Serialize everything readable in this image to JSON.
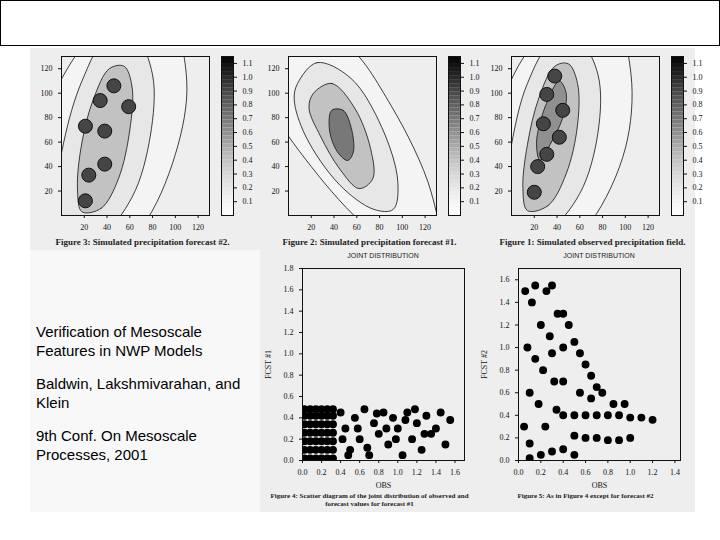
{
  "text": [
    "Verification of Mesoscale Features in NWP Models",
    "Baldwin, Lakshmivarahan, and Klein",
    "9th Conf. On Mesoscale Processes, 2001"
  ],
  "chart_data": [
    {
      "type": "contour",
      "caption": "Figure 3: Simulated precipitation forecast #2.",
      "xlim": [
        0,
        130
      ],
      "ylim": [
        0,
        130
      ],
      "xticks": [
        20,
        40,
        60,
        80,
        100,
        120
      ],
      "yticks": [
        20,
        40,
        60,
        80,
        100,
        120
      ],
      "contours": [
        {
          "level": 0.1,
          "x": [
            -10,
            30,
            70,
            100,
            110,
            95,
            60,
            20,
            -15,
            -30
          ],
          "y": [
            -40,
            -40,
            -10,
            50,
            110,
            160,
            170,
            140,
            80,
            10
          ]
        },
        {
          "level": 0.2,
          "x": [
            5,
            35,
            62,
            78,
            80,
            65,
            40,
            18,
            2,
            -5
          ],
          "y": [
            -15,
            -15,
            15,
            65,
            115,
            145,
            145,
            110,
            60,
            10
          ]
        },
        {
          "level": 0.4,
          "x": [
            18,
            35,
            50,
            60,
            62,
            55,
            42,
            28,
            18,
            14
          ],
          "y": [
            3,
            6,
            30,
            70,
            105,
            122,
            120,
            95,
            60,
            22
          ]
        }
      ],
      "blobs": {
        "level": 0.9,
        "x": [
          46,
          34,
          59,
          21,
          38,
          38,
          24,
          21
        ],
        "y": [
          106,
          94,
          89,
          73,
          69,
          42,
          33,
          12
        ]
      },
      "colorbar": {
        "range": [
          0,
          1.15
        ],
        "ticks": [
          0.1,
          0.2,
          0.3,
          0.4,
          0.5,
          0.6,
          0.7,
          0.8,
          0.9,
          1,
          1.1
        ]
      }
    },
    {
      "type": "contour",
      "caption": "Figure 2: Simulated precipitation forecast #1.",
      "xlim": [
        0,
        130
      ],
      "ylim": [
        0,
        130
      ],
      "xticks": [
        20,
        40,
        60,
        80,
        100,
        120
      ],
      "yticks": [
        20,
        40,
        60,
        80,
        100,
        120
      ],
      "contours": [
        {
          "level": 0.1,
          "x": [
            -20,
            10,
            50,
            90,
            125,
            130,
            110,
            70,
            20,
            -15
          ],
          "y": [
            125,
            150,
            140,
            90,
            20,
            -20,
            -30,
            -10,
            40,
            90
          ]
        },
        {
          "level": 0.2,
          "x": [
            8,
            25,
            55,
            82,
            96,
            92,
            75,
            45,
            15,
            5
          ],
          "y": [
            108,
            125,
            112,
            72,
            28,
            5,
            5,
            25,
            65,
            95
          ]
        },
        {
          "level": 0.4,
          "x": [
            22,
            38,
            58,
            72,
            74,
            62,
            45,
            28,
            18
          ],
          "y": [
            100,
            108,
            88,
            55,
            30,
            22,
            38,
            65,
            88
          ]
        },
        {
          "level": 0.7,
          "x": [
            38,
            48,
            55,
            57,
            52,
            43,
            36
          ],
          "y": [
            86,
            86,
            72,
            52,
            45,
            52,
            70
          ]
        }
      ],
      "colorbar": {
        "range": [
          0,
          1.15
        ],
        "ticks": [
          0.1,
          0.2,
          0.3,
          0.4,
          0.5,
          0.6,
          0.7,
          0.8,
          0.9,
          1,
          1.1
        ]
      }
    },
    {
      "type": "contour",
      "caption": "Figure 1: Simulated observed precipitation field.",
      "xlim": [
        0,
        130
      ],
      "ylim": [
        0,
        130
      ],
      "xticks": [
        20,
        40,
        60,
        80,
        100,
        120
      ],
      "yticks": [
        20,
        40,
        60,
        80,
        100,
        120
      ],
      "contours": [
        {
          "level": 0.1,
          "x": [
            -10,
            30,
            70,
            100,
            105,
            90,
            55,
            15,
            -15,
            -30
          ],
          "y": [
            -40,
            -40,
            -5,
            55,
            115,
            160,
            165,
            135,
            75,
            10
          ]
        },
        {
          "level": 0.2,
          "x": [
            2,
            32,
            60,
            76,
            76,
            60,
            36,
            14,
            0,
            -6
          ],
          "y": [
            -15,
            -12,
            18,
            68,
            115,
            142,
            142,
            108,
            58,
            10
          ]
        },
        {
          "level": 0.4,
          "x": [
            14,
            32,
            48,
            58,
            58,
            50,
            38,
            24,
            14,
            10
          ],
          "y": [
            4,
            8,
            34,
            74,
            108,
            124,
            122,
            96,
            58,
            22
          ]
        },
        {
          "level": 0.6,
          "x": [
            25,
            35,
            45,
            48,
            42,
            30,
            22
          ],
          "y": [
            45,
            60,
            80,
            100,
            110,
            90,
            60
          ]
        }
      ],
      "blobs": {
        "level": 0.9,
        "x": [
          38,
          31,
          45,
          28,
          42,
          31,
          23,
          20
        ],
        "y": [
          114,
          99,
          86,
          75,
          64,
          50,
          40,
          19
        ]
      },
      "colorbar": {
        "range": [
          0,
          1.15
        ],
        "ticks": [
          0.1,
          0.2,
          0.3,
          0.4,
          0.5,
          0.6,
          0.7,
          0.8,
          0.9,
          1,
          1.1
        ]
      }
    },
    {
      "type": "scatter",
      "title": "JOINT DISTRIBUTION",
      "x_label": "OBS",
      "y_label": "FCST #1",
      "caption": "Figure 4: Scatter diagram of the joint distribution of observed and forecast values for forecast #1",
      "marker": "circle",
      "color": "#000000",
      "xlim": [
        0,
        1.7
      ],
      "ylim": [
        0,
        1.8
      ],
      "xticks": [
        0,
        0.2,
        0.4,
        0.6,
        0.8,
        1,
        1.2,
        1.4,
        1.6
      ],
      "yticks": [
        0,
        0.2,
        0.4,
        0.6,
        0.8,
        1,
        1.2,
        1.4,
        1.6,
        1.8
      ],
      "x": [
        0.02,
        0.02,
        0.02,
        0.02,
        0.02,
        0.02,
        0.02,
        0.08,
        0.08,
        0.08,
        0.08,
        0.08,
        0.08,
        0.08,
        0.14,
        0.14,
        0.14,
        0.14,
        0.14,
        0.14,
        0.14,
        0.2,
        0.2,
        0.2,
        0.2,
        0.2,
        0.2,
        0.2,
        0.26,
        0.26,
        0.26,
        0.26,
        0.26,
        0.26,
        0.26,
        0.32,
        0.32,
        0.32,
        0.32,
        0.32,
        0.32,
        0.32,
        0.4,
        0.45,
        0.5,
        0.55,
        0.6,
        0.65,
        0.7,
        0.75,
        0.8,
        0.85,
        0.9,
        0.95,
        1,
        1.05,
        1.1,
        1.15,
        1.2,
        1.25,
        1.3,
        1.35,
        1.4,
        1.45,
        1.5,
        1.55,
        0.42,
        0.48,
        0.58,
        0.68,
        0.78,
        0.88,
        0.98,
        1.08,
        1.18,
        1.28
      ],
      "values": [
        0.02,
        0.1,
        0.18,
        0.26,
        0.34,
        0.42,
        0.48,
        0.02,
        0.1,
        0.18,
        0.26,
        0.34,
        0.42,
        0.48,
        0.02,
        0.1,
        0.18,
        0.26,
        0.34,
        0.42,
        0.48,
        0.02,
        0.1,
        0.18,
        0.26,
        0.34,
        0.42,
        0.48,
        0.02,
        0.1,
        0.18,
        0.26,
        0.34,
        0.42,
        0.48,
        0.02,
        0.1,
        0.18,
        0.26,
        0.34,
        0.42,
        0.48,
        0.45,
        0.3,
        0.1,
        0.4,
        0.2,
        0.48,
        0.05,
        0.35,
        0.25,
        0.45,
        0.15,
        0.4,
        0.3,
        0.05,
        0.45,
        0.2,
        0.35,
        0.1,
        0.42,
        0.25,
        0.3,
        0.45,
        0.15,
        0.38,
        0.2,
        0.05,
        0.3,
        0.12,
        0.44,
        0.3,
        0.2,
        0.38,
        0.48,
        0.25
      ]
    },
    {
      "type": "scatter",
      "title": "JOINT DISTRIBUTION",
      "x_label": "OBS",
      "y_label": "FCST #2",
      "caption": "Figure 5: As in Figure 4 except for forecast #2",
      "marker": "circle",
      "color": "#000000",
      "xlim": [
        0,
        1.45
      ],
      "ylim": [
        0,
        1.7
      ],
      "xticks": [
        0,
        0.2,
        0.4,
        0.6,
        0.8,
        1,
        1.2,
        1.4
      ],
      "yticks": [
        0,
        0.2,
        0.4,
        0.6,
        0.8,
        1,
        1.2,
        1.4,
        1.6
      ],
      "x": [
        0.05,
        0.1,
        0.15,
        0.2,
        0.25,
        0.3,
        0.35,
        0.08,
        0.12,
        0.18,
        0.22,
        0.28,
        0.32,
        0.06,
        0.15,
        0.24,
        0.3,
        0.1,
        0.2,
        0.34,
        0.4,
        0.4,
        0.4,
        0.4,
        0.4,
        0.5,
        0.6,
        0.7,
        0.8,
        0.9,
        1,
        1.1,
        1.2,
        0.5,
        0.6,
        0.7,
        0.8,
        0.9,
        1,
        0.45,
        0.5,
        0.55,
        0.6,
        0.65,
        0.7,
        0.75,
        0.85,
        0.95,
        0.55,
        0.65,
        0.1,
        0.3,
        0.5
      ],
      "values": [
        0.3,
        0.6,
        0.9,
        1.2,
        1.5,
        1.55,
        1.3,
        1,
        1.4,
        0.5,
        0.8,
        1.1,
        0.7,
        1.5,
        1.55,
        0.3,
        0.95,
        0.15,
        0.05,
        0.45,
        0.1,
        0.4,
        0.7,
        1,
        1.3,
        0.4,
        0.4,
        0.4,
        0.4,
        0.4,
        0.38,
        0.38,
        0.36,
        0.22,
        0.2,
        0.2,
        0.18,
        0.18,
        0.2,
        1.2,
        1.05,
        0.95,
        0.85,
        0.75,
        0.65,
        0.6,
        0.5,
        0.5,
        0.6,
        0.55,
        0.02,
        0.08,
        0.05
      ]
    }
  ]
}
